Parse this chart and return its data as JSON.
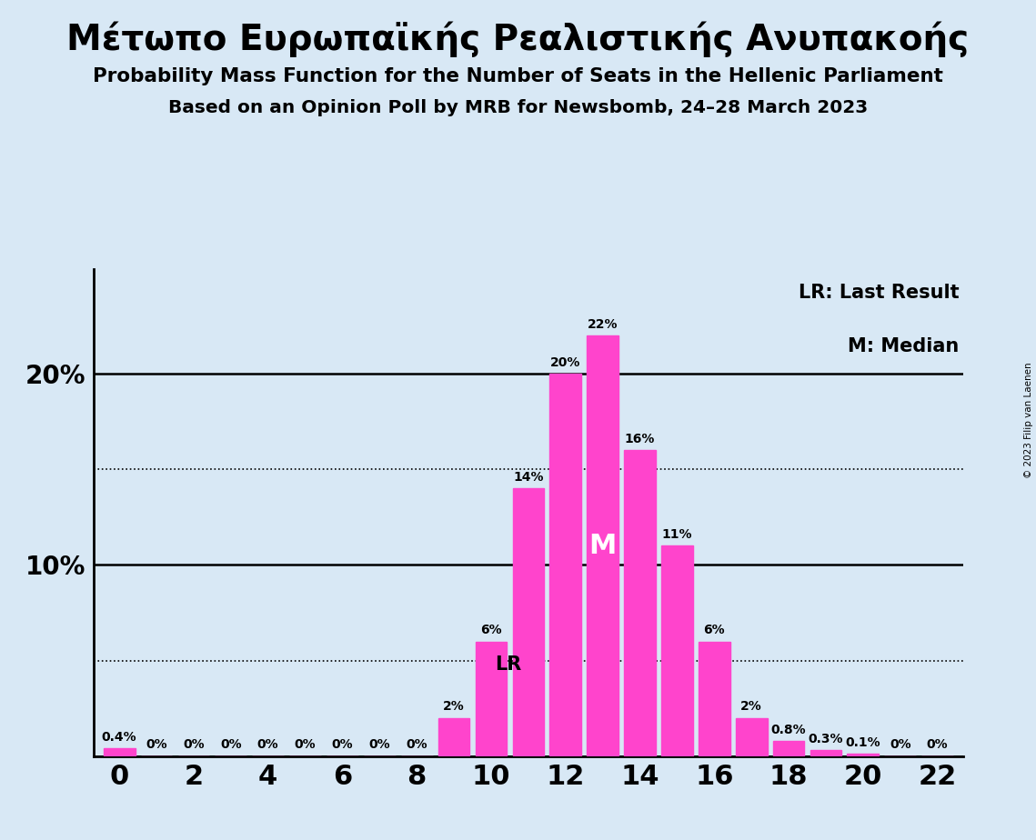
{
  "title1": "Μέτωπο Ευρωπαϊκής Ρεαλιστικής Ανυπακοής",
  "title2": "Probability Mass Function for the Number of Seats in the Hellenic Parliament",
  "title3": "Based on an Opinion Poll by MRB for Newsbomb, 24–28 March 2023",
  "copyright": "© 2023 Filip van Laenen",
  "seats": [
    0,
    1,
    2,
    3,
    4,
    5,
    6,
    7,
    8,
    9,
    10,
    11,
    12,
    13,
    14,
    15,
    16,
    17,
    18,
    19,
    20,
    21,
    22
  ],
  "probabilities": [
    0.4,
    0,
    0,
    0,
    0,
    0,
    0,
    0,
    0,
    2,
    6,
    14,
    20,
    22,
    16,
    11,
    6,
    2,
    0.8,
    0.3,
    0.1,
    0,
    0
  ],
  "bar_color": "#FF44CC",
  "background_color": "#D8E8F5",
  "lr_seat": 11,
  "lr_value": 4.8,
  "median_seat": 13,
  "legend_lr": "LR: Last Result",
  "legend_m": "M: Median",
  "yticks": [
    10,
    20
  ],
  "ytick_labels": [
    "10%",
    "20%"
  ],
  "dotted_lines": [
    5,
    15
  ],
  "ylim": [
    0,
    25.5
  ],
  "xlim": [
    -0.7,
    22.7
  ],
  "label_fontsize": 10,
  "bar_label_color": "black",
  "zero_label_color": "black"
}
